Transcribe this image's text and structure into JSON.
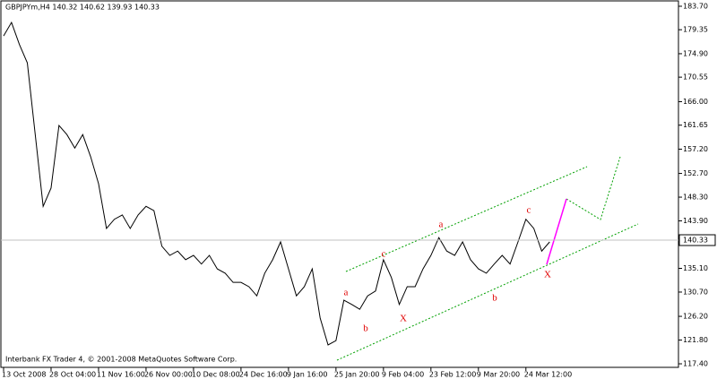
{
  "chart_data": {
    "type": "line",
    "title": "GBPJPYm,H4  140.32 140.62 139.93 140.33",
    "footer": "Interbank FX Trader 4, © 2001-2008 MetaQuotes Software Corp.",
    "categories": [
      "13 Oct 2008",
      null,
      null,
      null,
      null,
      null,
      "28 Oct 04:00",
      null,
      null,
      null,
      null,
      null,
      "11 Nov 16:00",
      null,
      null,
      null,
      null,
      null,
      "26 Nov 00:00",
      null,
      null,
      null,
      null,
      null,
      "10 Dec 08:00",
      null,
      null,
      null,
      null,
      null,
      "24 Dec 16:00",
      null,
      null,
      null,
      null,
      null,
      "9 Jan 16:00",
      null,
      null,
      null,
      null,
      null,
      "25 Jan 20:00",
      null,
      null,
      null,
      null,
      null,
      "9 Feb 04:00",
      null,
      null,
      null,
      null,
      null,
      "23 Feb 12:00",
      null,
      null,
      null,
      null,
      null,
      "9 Mar 20:00",
      null,
      null,
      null,
      null,
      null,
      "24 Mar 12:00",
      null,
      null,
      null
    ],
    "values": [
      178.2,
      180.7,
      176.6,
      173.2,
      159.9,
      146.6,
      150,
      161.6,
      159.9,
      157.4,
      159.9,
      155.8,
      150.8,
      142.5,
      144.2,
      145,
      142.5,
      145,
      146.6,
      145.8,
      139.2,
      137.5,
      138.3,
      136.7,
      137.5,
      135.9,
      137.5,
      135,
      134.2,
      132.5,
      132.5,
      131.7,
      130,
      134.2,
      136.7,
      140,
      135,
      130,
      131.7,
      135,
      125.9,
      120.9,
      121.7,
      129.2,
      128.4,
      127.5,
      130,
      130.9,
      136.7,
      133.4,
      128.4,
      131.7,
      131.7,
      135,
      137.5,
      140.8,
      138.3,
      137.5,
      140,
      136.7,
      135,
      134.2,
      135.9,
      137.5,
      135.9,
      140,
      144.2,
      142.5,
      138.3,
      140
    ],
    "color": "#000000",
    "last_price": 140.33,
    "ylim": [
      116.74,
      184.86
    ],
    "yticks": [
      {
        "value": 183.7,
        "label": "183.70"
      },
      {
        "value": 179.35,
        "label": "179.35"
      },
      {
        "value": 174.9,
        "label": "174.90"
      },
      {
        "value": 170.55,
        "label": "170.55"
      },
      {
        "value": 166,
        "label": "166.00"
      },
      {
        "value": 161.65,
        "label": "161.65"
      },
      {
        "value": 157.2,
        "label": "157.20"
      },
      {
        "value": 152.7,
        "label": "152.70"
      },
      {
        "value": 148.3,
        "label": "148.30"
      },
      {
        "value": 143.9,
        "label": "143.90"
      },
      {
        "value": 135.1,
        "label": "135.10"
      },
      {
        "value": 130.7,
        "label": "130.70"
      },
      {
        "value": 126.2,
        "label": "126.20"
      },
      {
        "value": 121.8,
        "label": "121.80"
      },
      {
        "value": 117.4,
        "label": "117.40"
      }
    ],
    "annotations": [
      "a",
      "b",
      "c",
      "X",
      "a",
      "b",
      "c",
      "X"
    ]
  }
}
